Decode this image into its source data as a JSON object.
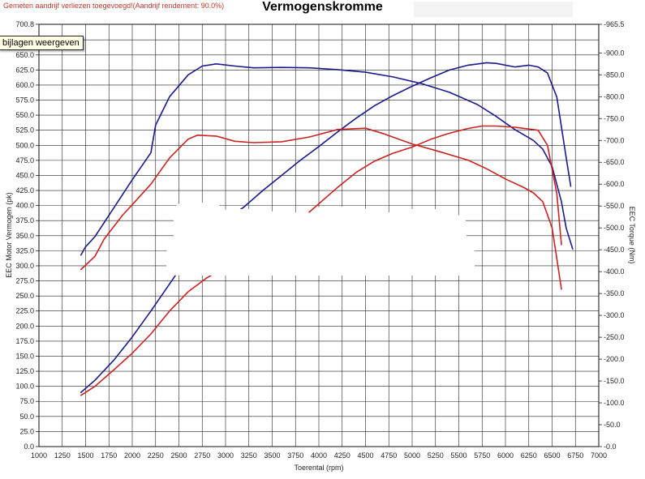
{
  "header": {
    "notice": "Gemeten aandrijf verliezen toegevoegd!(Aandrijf rendement: 90.0%)",
    "title": "Vermogenskromme",
    "tooltip": "bijlagen weergeven"
  },
  "colors": {
    "blue": "#1a1a8c",
    "red": "#cc2222",
    "grid": "#111111",
    "notice": "#c0392b"
  },
  "chart_data": {
    "type": "line",
    "xlabel": "Toerental (rpm)",
    "ylabel_left": "EEC Motor Vermogen (pk)",
    "ylabel_right": "EEC Torque (Nm)",
    "xlim": [
      1000,
      7000
    ],
    "ylim_left": [
      0,
      700.8
    ],
    "ylim_right": [
      0,
      965.5
    ],
    "x_ticks": [
      "1000",
      "1250",
      "1500",
      "1750",
      "2000",
      "2250",
      "2500",
      "2750",
      "3000",
      "3250",
      "3500",
      "3750",
      "4000",
      "4250",
      "4500",
      "4750",
      "5000",
      "5250",
      "5500",
      "5750",
      "6000",
      "6250",
      "6500",
      "6750",
      "7000"
    ],
    "y_left_ticks": [
      "0.0",
      "25.0",
      "50.0",
      "75.0",
      "100.0",
      "125.0",
      "150.0",
      "175.0",
      "200.0",
      "225.0",
      "250.0",
      "275.0",
      "300.0",
      "325.0",
      "350.0",
      "375.0",
      "400.0",
      "425.0",
      "450.0",
      "475.0",
      "500.0",
      "525.0",
      "550.0",
      "575.0",
      "600.0",
      "625.0",
      "650.0",
      "675.0",
      "700.8"
    ],
    "y_right_ticks": [
      "0.0",
      "50.0",
      "100.0",
      "150.0",
      "200.0",
      "250.0",
      "300.0",
      "350.0",
      "400.0",
      "450.0",
      "500.0",
      "550.0",
      "600.0",
      "650.0",
      "700.0",
      "750.0",
      "800.0",
      "850.0",
      "900.0",
      "965.5"
    ],
    "series": [
      {
        "color": "#1a1a8c",
        "axis": "left",
        "points": [
          [
            1450,
            90
          ],
          [
            1600,
            110
          ],
          [
            1800,
            143
          ],
          [
            2000,
            182
          ],
          [
            2200,
            225
          ],
          [
            2400,
            270
          ],
          [
            2600,
            315
          ],
          [
            2800,
            350
          ],
          [
            3000,
            375
          ],
          [
            3200,
            398
          ],
          [
            3400,
            425
          ],
          [
            3600,
            450
          ],
          [
            3800,
            475
          ],
          [
            4000,
            498
          ],
          [
            4200,
            522
          ],
          [
            4400,
            545
          ],
          [
            4600,
            566
          ],
          [
            4800,
            583
          ],
          [
            5000,
            598
          ],
          [
            5200,
            612
          ],
          [
            5400,
            625
          ],
          [
            5600,
            633
          ],
          [
            5800,
            637
          ],
          [
            5900,
            636
          ],
          [
            6100,
            630
          ],
          [
            6250,
            633
          ],
          [
            6350,
            630
          ],
          [
            6450,
            620
          ],
          [
            6550,
            580
          ],
          [
            6650,
            480
          ],
          [
            6700,
            432
          ]
        ]
      },
      {
        "color": "#1a1a8c",
        "axis": "right",
        "points": [
          [
            1450,
            438
          ],
          [
            1500,
            457
          ],
          [
            1600,
            480
          ],
          [
            1800,
            545
          ],
          [
            2000,
            610
          ],
          [
            2200,
            672
          ],
          [
            2250,
            735
          ],
          [
            2400,
            800
          ],
          [
            2600,
            850
          ],
          [
            2750,
            870
          ],
          [
            2900,
            875
          ],
          [
            3100,
            870
          ],
          [
            3300,
            866
          ],
          [
            3600,
            867
          ],
          [
            3900,
            866
          ],
          [
            4200,
            862
          ],
          [
            4500,
            856
          ],
          [
            4800,
            845
          ],
          [
            5100,
            830
          ],
          [
            5400,
            810
          ],
          [
            5700,
            782
          ],
          [
            5900,
            755
          ],
          [
            6100,
            725
          ],
          [
            6300,
            700
          ],
          [
            6400,
            680
          ],
          [
            6500,
            640
          ],
          [
            6600,
            560
          ],
          [
            6650,
            500
          ],
          [
            6720,
            452
          ]
        ]
      },
      {
        "color": "#cc2222",
        "axis": "left",
        "points": [
          [
            1450,
            85
          ],
          [
            1600,
            100
          ],
          [
            1800,
            127
          ],
          [
            2000,
            155
          ],
          [
            2200,
            187
          ],
          [
            2400,
            225
          ],
          [
            2600,
            257
          ],
          [
            2800,
            280
          ],
          [
            3000,
            298
          ],
          [
            3200,
            312
          ],
          [
            3400,
            335
          ],
          [
            3600,
            353
          ],
          [
            3800,
            376
          ],
          [
            4000,
            403
          ],
          [
            4200,
            430
          ],
          [
            4400,
            455
          ],
          [
            4600,
            474
          ],
          [
            4800,
            487
          ],
          [
            5000,
            497
          ],
          [
            5200,
            510
          ],
          [
            5400,
            520
          ],
          [
            5600,
            528
          ],
          [
            5750,
            532
          ],
          [
            5900,
            532
          ],
          [
            6100,
            530
          ],
          [
            6250,
            527
          ],
          [
            6350,
            525
          ],
          [
            6450,
            500
          ],
          [
            6550,
            420
          ],
          [
            6600,
            335
          ]
        ]
      },
      {
        "color": "#cc2222",
        "axis": "right",
        "points": [
          [
            1450,
            405
          ],
          [
            1600,
            435
          ],
          [
            1700,
            475
          ],
          [
            1900,
            530
          ],
          [
            2000,
            553
          ],
          [
            2200,
            600
          ],
          [
            2400,
            660
          ],
          [
            2600,
            703
          ],
          [
            2700,
            712
          ],
          [
            2900,
            710
          ],
          [
            3100,
            698
          ],
          [
            3300,
            695
          ],
          [
            3600,
            697
          ],
          [
            3900,
            708
          ],
          [
            4200,
            725
          ],
          [
            4500,
            728
          ],
          [
            4700,
            715
          ],
          [
            5000,
            692
          ],
          [
            5300,
            674
          ],
          [
            5600,
            655
          ],
          [
            5800,
            635
          ],
          [
            6000,
            612
          ],
          [
            6200,
            592
          ],
          [
            6300,
            580
          ],
          [
            6400,
            560
          ],
          [
            6500,
            500
          ],
          [
            6550,
            430
          ],
          [
            6600,
            360
          ]
        ]
      }
    ]
  }
}
